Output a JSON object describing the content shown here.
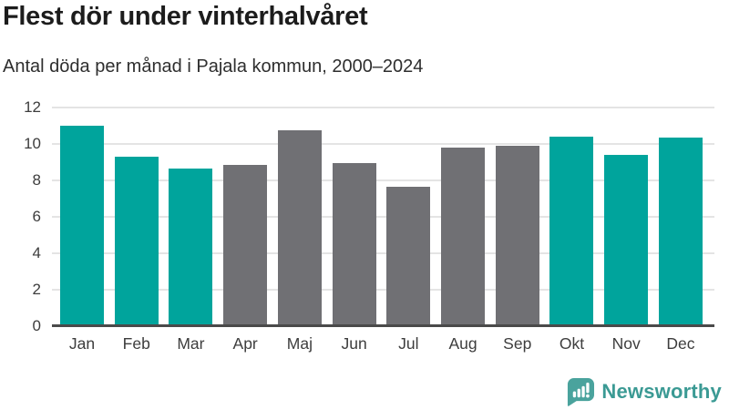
{
  "chart_data": {
    "type": "bar",
    "title": "Flest dör under vinterhalvåret",
    "subtitle": "Antal döda per månad i Pajala kommun, 2000–2024",
    "categories": [
      "Jan",
      "Feb",
      "Mar",
      "Apr",
      "Maj",
      "Jun",
      "Jul",
      "Aug",
      "Sep",
      "Okt",
      "Nov",
      "Dec"
    ],
    "values": [
      11.0,
      9.3,
      8.65,
      8.85,
      10.75,
      8.95,
      7.65,
      9.8,
      9.9,
      10.4,
      9.4,
      10.35
    ],
    "highlighted": [
      true,
      true,
      true,
      false,
      false,
      false,
      false,
      false,
      false,
      true,
      true,
      true
    ],
    "highlight_color": "#00a49c",
    "base_color": "#707074",
    "xlabel": "",
    "ylabel": "",
    "ylim": [
      0,
      12
    ],
    "yticks": [
      0,
      2,
      4,
      6,
      8,
      10,
      12
    ],
    "grid": true,
    "legend": "none"
  },
  "footer": {
    "brand": "Newsworthy",
    "brand_color": "#3b9a94",
    "logo_icon": "bar-chart-speech-bubble-icon",
    "logo_bubble_color": "#4aa39d"
  }
}
